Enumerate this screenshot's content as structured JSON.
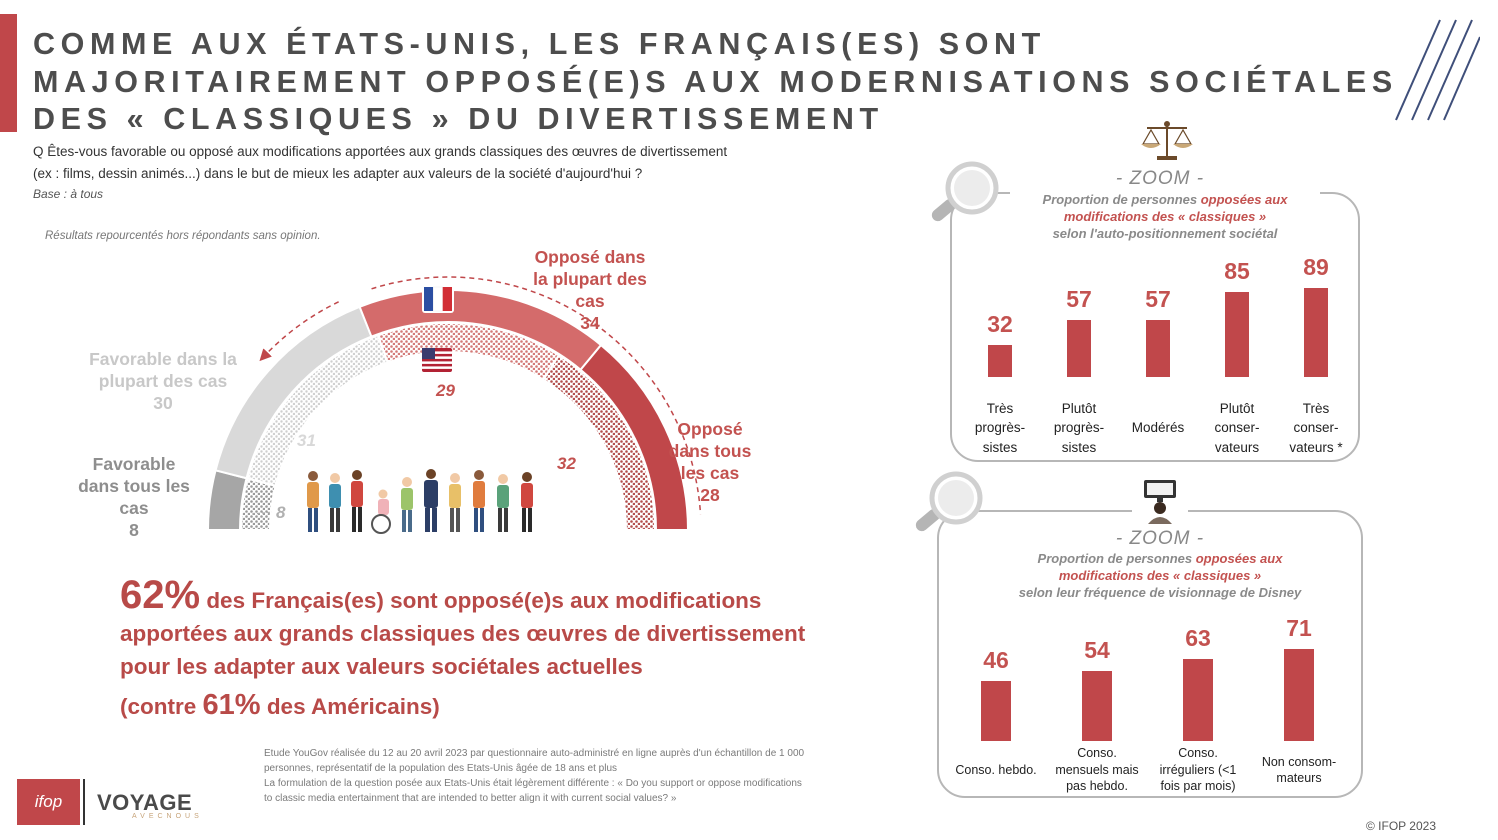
{
  "header": {
    "title": "COMME AUX ÉTATS-UNIS, LES FRANÇAIS(ES) SONT MAJORITAIREMENT OPPOSÉ(E)S AUX MODERNISATIONS SOCIÉTALES DES « CLASSIQUES » DU DIVERTISSEMENT",
    "question_line1": "Q Êtes-vous favorable ou opposé aux modifications apportées aux grands classiques des œuvres de divertissement",
    "question_line2": "(ex : films, dessin animés...) dans le but de mieux les adapter aux valeurs de la société d'aujourd'hui ?",
    "base": "Base : à tous",
    "note": "Résultats repourcentés hors répondants sans opinion."
  },
  "colors": {
    "accent": "#c0474a",
    "grey_light": "#d9d9d9",
    "grey_dark": "#a6a6a6",
    "red_light": "#d46b6b",
    "red_dark": "#c0474a"
  },
  "chart_data": [
    {
      "type": "pie",
      "subtype": "semicircle-gauge",
      "series": [
        {
          "name": "France",
          "categories": [
            "Favorable dans tous les cas",
            "Favorable dans la plupart des cas",
            "Opposé dans la plupart des cas",
            "Opposé dans tous les cas"
          ],
          "values": [
            8,
            30,
            34,
            28
          ],
          "labels": [
            {
              "lines": [
                "Favorable",
                "dans tous les",
                "cas"
              ],
              "value": "8"
            },
            {
              "lines": [
                "Favorable dans la",
                "plupart des cas"
              ],
              "value": "30"
            },
            {
              "lines": [
                "Opposé dans",
                "la plupart des",
                "cas"
              ],
              "value": "34"
            },
            {
              "lines": [
                "Opposé",
                "dans tous",
                "les cas"
              ],
              "value": "28"
            }
          ]
        },
        {
          "name": "États-Unis",
          "categories": [
            "Favorable dans tous les cas",
            "Favorable dans la plupart des cas",
            "Opposé dans la plupart des cas",
            "Opposé dans tous les cas"
          ],
          "values": [
            8,
            31,
            29,
            32
          ],
          "labels": [
            "8",
            "31",
            "29",
            "32"
          ]
        }
      ],
      "icons": [
        "france-flag-icon",
        "us-flag-icon",
        "people-group-icon"
      ]
    },
    {
      "type": "bar",
      "title": "- ZOOM -",
      "subtitle_parts": [
        "Proportion de personnes ",
        "opposées aux",
        "modifications des « classiques »",
        "selon l'auto-positionnement sociétal"
      ],
      "categories": [
        [
          "Très",
          "progrès-",
          "sistes"
        ],
        [
          "Plutôt",
          "progrès-",
          "sistes"
        ],
        [
          "Modérés"
        ],
        [
          "Plutôt",
          "conser-",
          "vateurs"
        ],
        [
          "Très",
          "conser-",
          "vateurs *"
        ]
      ],
      "values": [
        32,
        57,
        57,
        85,
        89
      ],
      "ylim": [
        0,
        100
      ],
      "icon": "scales-icon"
    },
    {
      "type": "bar",
      "title": "- ZOOM -",
      "subtitle_parts": [
        "Proportion de personnes ",
        "opposées aux",
        "modifications des « classiques  »",
        "selon leur fréquence de visionnage de Disney"
      ],
      "categories": [
        [
          "Conso. hebdo."
        ],
        [
          "Conso.",
          "mensuels mais",
          "pas hebdo."
        ],
        [
          "Conso.",
          "irréguliers (<1",
          "fois par mois)"
        ],
        [
          "Non consom-",
          "mateurs"
        ]
      ],
      "values": [
        46,
        54,
        63,
        71
      ],
      "ylim": [
        0,
        100
      ],
      "icon": "tv-viewer-icon"
    }
  ],
  "highlight": {
    "pct_fr": "62%",
    "line1_rest": " des Français(es) sont opposé(e)s aux modifications",
    "line2": "apportées aux grands classiques des œuvres de divertissement",
    "line3": "pour les adapter aux valeurs sociétales actuelles",
    "line4_pre": "(contre ",
    "pct_us": "61%",
    "line4_post": " des Américains)"
  },
  "source": {
    "line1": "Etude YouGov réalisée du 12 au 20 avril 2023 par questionnaire auto-administré en ligne auprès d'un échantillon de 1 000",
    "line2": "personnes, représentatif de la population des Etats-Unis âgée de 18 ans et plus",
    "line3": "La formulation de la question posée aux Etats-Unis était légèrement différente : « Do you support or oppose modifications",
    "line4": "to classic media entertainment that are intended to better align it with current social values? »"
  },
  "footer": {
    "logo_ifop": "ifop",
    "logo_voyage": "VOYAGE",
    "logo_voyage_sub": "AVECNOUS",
    "copyright": "© IFOP 2023"
  }
}
